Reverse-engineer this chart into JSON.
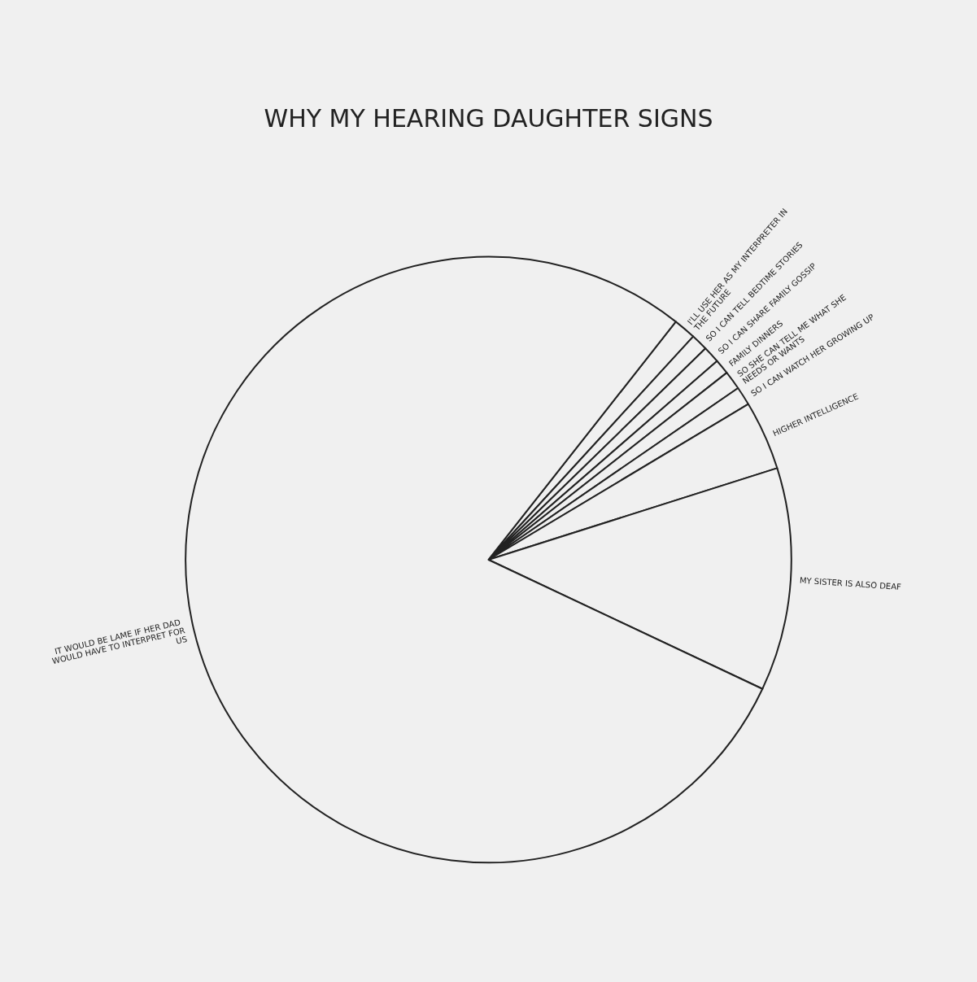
{
  "chart_data": {
    "type": "pie",
    "title": "WHY MY HEARING DAUGHTER SIGNS",
    "categories": [
      "I'LL USE HER AS MY INTERPRETER IN THE FUTURE",
      "SO I CAN TELL BEDTIME STORIES",
      "SO I CAN SHARE FAMILY GOSSIP",
      "FAMILY DINNERS",
      "SO SHE CAN TELL ME WHAT SHE NEEDS OR WANTS",
      "SO I CAN WATCH HER GROWING UP",
      "HIGHER INTELLIGENCE",
      "MY SISTER IS ALSO DEAF",
      "IT WOULD BE LAME IF HER DAD WOULD HAVE TO INTERPRET FOR US"
    ],
    "values": [
      1.2,
      0.9,
      0.9,
      0.8,
      1.0,
      1.0,
      3.7,
      11.9,
      78.6
    ],
    "colors": [
      "#f0f0f0",
      "#f0f0f0",
      "#f0f0f0",
      "#f0f0f0",
      "#f0f0f0",
      "#f0f0f0",
      "#f0f0f0",
      "#f0f0f0",
      "#f0f0f0"
    ],
    "legend": false
  }
}
